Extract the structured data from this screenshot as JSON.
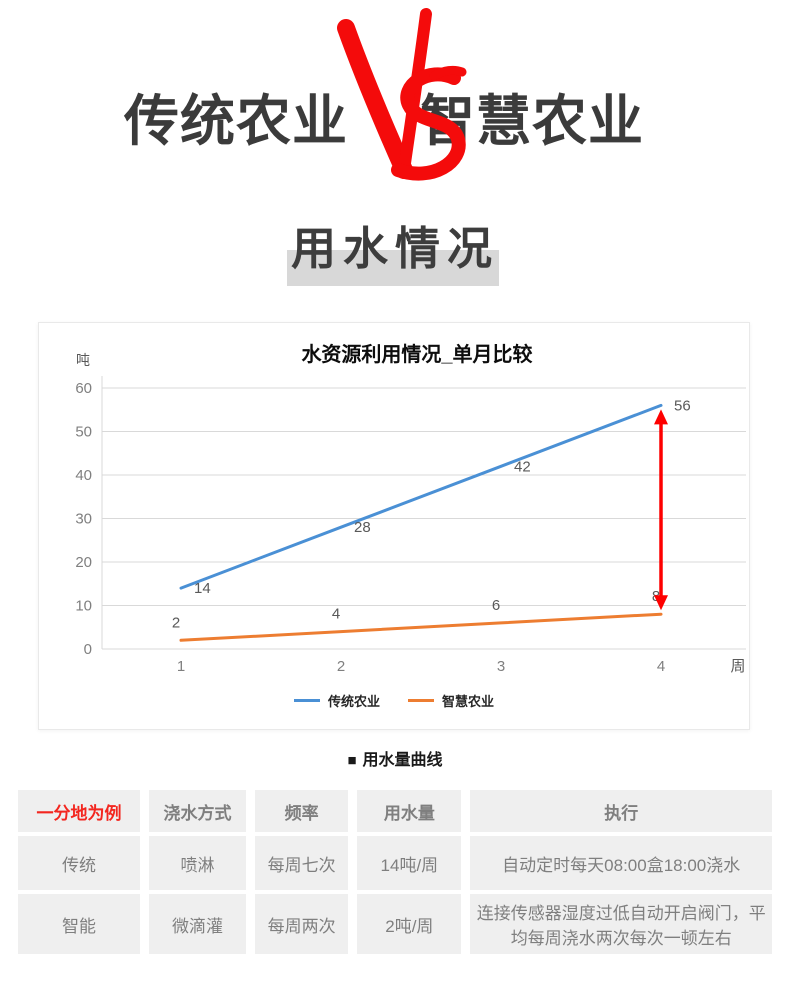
{
  "header": {
    "left_title": "传统农业",
    "vs_label": "VS",
    "right_title": "智慧农业",
    "accent_color": "#f40b0b",
    "title_color": "#3b3b3b"
  },
  "section": {
    "heading": "用水情况"
  },
  "chart_data": {
    "type": "line",
    "title": "水资源利用情况_单月比较",
    "y_axis_label": "吨",
    "x_axis_label": "周",
    "x": [
      1,
      2,
      3,
      4
    ],
    "y_ticks": [
      0,
      10,
      20,
      30,
      40,
      50,
      60
    ],
    "ylim": [
      0,
      60
    ],
    "grid": true,
    "legend_position": "bottom",
    "series": [
      {
        "name": "传统农业",
        "color": "#4a90d5",
        "values": [
          14,
          28,
          42,
          56
        ]
      },
      {
        "name": "智慧农业",
        "color": "#ed7d31",
        "values": [
          2,
          4,
          6,
          8
        ]
      }
    ],
    "annotation": {
      "type": "double-arrow",
      "x": 4,
      "from": 56,
      "to": 8,
      "color": "#fe0000"
    }
  },
  "caption": {
    "bullet": "■",
    "text": "用水量曲线"
  },
  "table": {
    "columns": [
      "一分地为例",
      "浇水方式",
      "频率",
      "用水量",
      "执行"
    ],
    "rows": [
      [
        "传统",
        "喷淋",
        "每周七次",
        "14吨/周",
        "自动定时每天08:00盒18:00浇水"
      ],
      [
        "智能",
        "微滴灌",
        "每周两次",
        "2吨/周",
        "连接传感器湿度过低自动开启阀门，平均每周浇水两次每次一顿左右"
      ]
    ]
  }
}
